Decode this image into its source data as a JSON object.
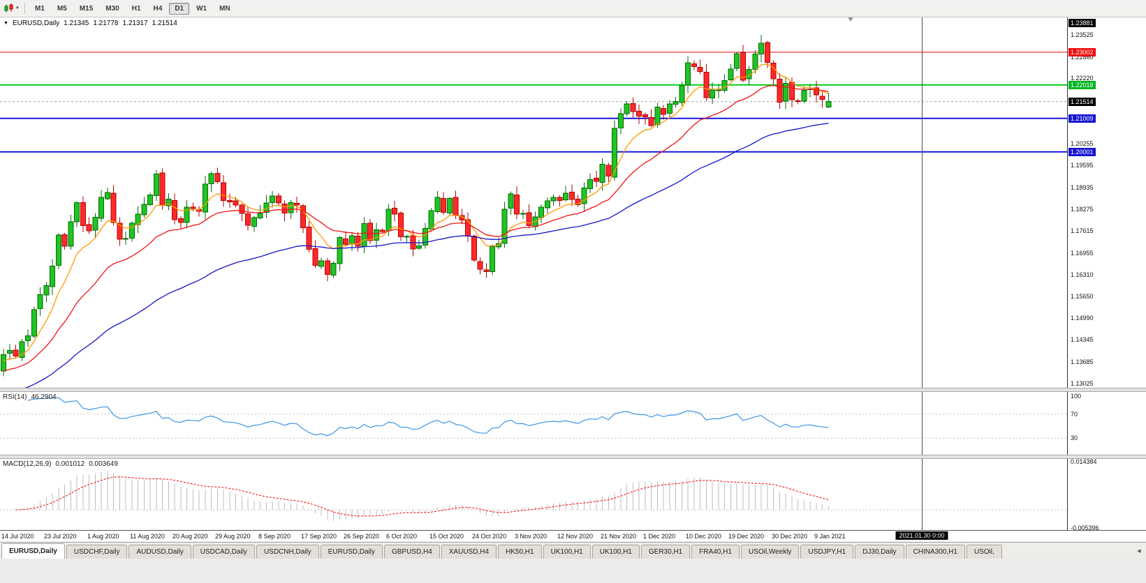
{
  "toolbar": {
    "timeframes": [
      "M1",
      "M5",
      "M15",
      "M30",
      "H1",
      "H4",
      "D1",
      "W1",
      "MN"
    ],
    "active_timeframe": "D1"
  },
  "icons": {
    "dropdown_caret": "▼",
    "tab_scroll_left": "◀"
  },
  "main_chart": {
    "symbol_period": "EURUSD,Daily",
    "open": "1.21345",
    "high": "1.21778",
    "low": "1.21317",
    "close": "1.21514"
  },
  "tabs": {
    "active_index": 0,
    "items": [
      "EURUSD,Daily",
      "USDCHF,Daily",
      "AUDUSD,Daily",
      "USDCAD,Daily",
      "USDCNH,Daily",
      "EURUSD,Daily",
      "GBPUSD,H4",
      "XAUUSD,H4",
      "HK50,H1",
      "UK100,H1",
      "UK100,H1",
      "GER30,H1",
      "FRA40,H1",
      "USOil,Weekly",
      "USDJPY,H1",
      "DJ30,Daily",
      "CHINA300,H1",
      "USOil,"
    ]
  },
  "chart_data": {
    "type": "candlestick",
    "symbol": "EURUSD",
    "timeframe": "Daily",
    "price_range": {
      "top": 1.23881,
      "bottom": 1.13025
    },
    "first_open": 1.134,
    "current_bar": {
      "open": 1.21345,
      "high": 1.21778,
      "low": 1.21317,
      "close": 1.21514
    },
    "closes": [
      1.139,
      1.1402,
      1.1385,
      1.1428,
      1.1446,
      1.1525,
      1.157,
      1.1598,
      1.1656,
      1.175,
      1.1716,
      1.179,
      1.1847,
      1.1778,
      1.1762,
      1.1803,
      1.1863,
      1.1878,
      1.1787,
      1.1737,
      1.1739,
      1.1785,
      1.1813,
      1.1842,
      1.1871,
      1.1933,
      1.1839,
      1.1858,
      1.1796,
      1.1787,
      1.1834,
      1.183,
      1.1821,
      1.1903,
      1.1935,
      1.1911,
      1.1854,
      1.185,
      1.184,
      1.1815,
      1.1779,
      1.1802,
      1.1815,
      1.1846,
      1.1867,
      1.1846,
      1.1816,
      1.1847,
      1.184,
      1.1772,
      1.1707,
      1.1659,
      1.1672,
      1.1631,
      1.1665,
      1.1742,
      1.1721,
      1.1748,
      1.1716,
      1.1784,
      1.1733,
      1.1765,
      1.176,
      1.1827,
      1.1813,
      1.1745,
      1.1746,
      1.1708,
      1.1717,
      1.177,
      1.1823,
      1.1863,
      1.1818,
      1.186,
      1.181,
      1.1795,
      1.1747,
      1.1674,
      1.1647,
      1.164,
      1.1715,
      1.1723,
      1.1827,
      1.1874,
      1.1813,
      1.1815,
      1.1778,
      1.1804,
      1.1834,
      1.1853,
      1.1863,
      1.1854,
      1.1876,
      1.1857,
      1.1841,
      1.1891,
      1.1917,
      1.1912,
      1.1963,
      1.1927,
      1.2071,
      1.2115,
      1.2145,
      1.2121,
      1.2108,
      1.2106,
      1.208,
      1.2135,
      1.2113,
      1.2145,
      1.2152,
      1.2199,
      1.2268,
      1.2257,
      1.2242,
      1.2163,
      1.2187,
      1.2187,
      1.2215,
      1.2249,
      1.2296,
      1.2216,
      1.2248,
      1.2295,
      1.2327,
      1.2269,
      1.222,
      1.215,
      1.2206,
      1.2157,
      1.2154,
      1.2185,
      1.219,
      1.2172,
      1.2158,
      1.21514
    ],
    "x_labels": [
      "14 Jul 2020",
      "23 Jul 2020",
      "1 Aug 2020",
      "11 Aug 2020",
      "20 Aug 2020",
      "29 Aug 2020",
      "8 Sep 2020",
      "17 Sep 2020",
      "26 Sep 2020",
      "6 Oct 2020",
      "15 Oct 2020",
      "24 Oct 2020",
      "3 Nov 2020",
      "12 Nov 2020",
      "21 Nov 2020",
      "1 Dec 2020",
      "10 Dec 2020",
      "19 Dec 2020",
      "30 Dec 2020",
      "9 Jan 2021"
    ],
    "y_ticks": [
      "1.23525",
      "1.22860",
      "1.22220",
      "1.20255",
      "1.19595",
      "1.18935",
      "1.18275",
      "1.17615",
      "1.16955",
      "1.16310",
      "1.15650",
      "1.14990",
      "1.14345",
      "1.13685",
      "1.13025"
    ],
    "axis_badges": [
      {
        "text": "1.23881",
        "price": 1.23881,
        "bg": "#000000"
      },
      {
        "text": "1.23002",
        "price": 1.23002,
        "bg": "#ee0c0c"
      },
      {
        "text": "1.22018",
        "price": 1.22018,
        "bg": "#00b41e"
      },
      {
        "text": "1.21514",
        "price": 1.21514,
        "bg": "#000000"
      },
      {
        "text": "1.21009",
        "price": 1.21009,
        "bg": "#1414d2"
      },
      {
        "text": "1.20001",
        "price": 1.20001,
        "bg": "#1414d2"
      }
    ],
    "h_lines": [
      {
        "price": 1.23002,
        "color": "#f00000",
        "width": 1
      },
      {
        "price": 1.22018,
        "color": "#00cc1e",
        "width": 2
      },
      {
        "price": 1.21009,
        "color": "#1616dc",
        "width": 2
      },
      {
        "price": 1.20001,
        "color": "#1616dc",
        "width": 2
      }
    ],
    "current_price_line": {
      "price": 1.21514,
      "color": "#a0a0a0"
    },
    "vertical_line": {
      "date_label": "2021.01.30 0:00"
    },
    "colors": {
      "up": "#1fc523",
      "up_border": "#056805",
      "down": "#ff2a2a",
      "down_border": "#b40000"
    },
    "indicators": {
      "mas": [
        {
          "name": "ma-fast",
          "color": "#ff9900",
          "period": 8,
          "seed": 1.1365
        },
        {
          "name": "ma-medium",
          "color": "#f01414",
          "period": 21,
          "seed": 1.1335
        },
        {
          "name": "ma-slow",
          "color": "#1414c8",
          "period": 55,
          "seed": 1.1268
        }
      ],
      "rsi": {
        "name": "RSI(14)",
        "value": "46.2904",
        "period": 14,
        "color": "#3c96e6",
        "axis_labels": [
          "100",
          "70",
          "30"
        ],
        "level_lines": [
          70,
          30
        ]
      },
      "macd": {
        "name": "MACD(12,26,9)",
        "main_value": "0.001012",
        "signal_value": "0.003649",
        "fast": 12,
        "slow": 26,
        "signal": 9,
        "axis_max": "0.014384",
        "axis_min": "-0.005396",
        "histogram_color": "#bdbdbd",
        "signal_color": "#ff0000"
      }
    }
  }
}
